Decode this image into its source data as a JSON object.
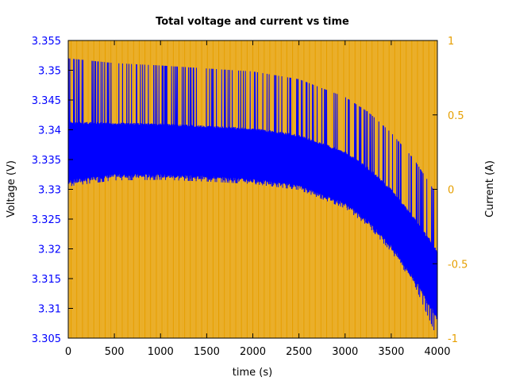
{
  "chart_data": {
    "type": "line",
    "title": "Total voltage and current vs time",
    "xlabel": "time (s)",
    "ylabel_left": "Voltage (V)",
    "ylabel_right": "Current (A)",
    "xlim": [
      0,
      4000
    ],
    "ylim_left": [
      3.305,
      3.355
    ],
    "ylim_right": [
      -1,
      1
    ],
    "x_ticks": [
      "0",
      "500",
      "1000",
      "1500",
      "2000",
      "2500",
      "3000",
      "3500",
      "4000"
    ],
    "y_left_ticks": [
      "3.305",
      "3.31",
      "3.315",
      "3.32",
      "3.325",
      "3.33",
      "3.335",
      "3.34",
      "3.345",
      "3.35",
      "3.355"
    ],
    "y_right_ticks": [
      "-1",
      "-0.5",
      "0",
      "0.5",
      "1"
    ],
    "grid": false,
    "series": [
      {
        "name": "Current",
        "axis": "right",
        "color": "#e69f00",
        "description": "square-wave pulses switching between +1 A and -1 A about every 10 s",
        "period_s": 20,
        "high": 1,
        "low": -1
      },
      {
        "name": "Voltage",
        "axis": "left",
        "color": "#0000ff",
        "envelope": {
          "x": [
            0,
            500,
            1000,
            1500,
            2000,
            2500,
            3000,
            3250,
            3500,
            3750,
            4000
          ],
          "upper": [
            3.352,
            3.3512,
            3.3508,
            3.3503,
            3.3498,
            3.3485,
            3.3455,
            3.343,
            3.3395,
            3.335,
            3.329
          ],
          "band_high": [
            3.3415,
            3.3413,
            3.3412,
            3.3408,
            3.3404,
            3.3393,
            3.3365,
            3.3338,
            3.3302,
            3.3255,
            3.32
          ],
          "band_low": [
            3.3307,
            3.3318,
            3.3318,
            3.3315,
            3.331,
            3.33,
            3.327,
            3.324,
            3.3198,
            3.3142,
            3.3078
          ],
          "lower": [
            3.3305,
            3.3315,
            3.3316,
            3.3313,
            3.3309,
            3.3299,
            3.3268,
            3.3238,
            3.3195,
            3.314,
            3.305
          ]
        }
      }
    ]
  }
}
